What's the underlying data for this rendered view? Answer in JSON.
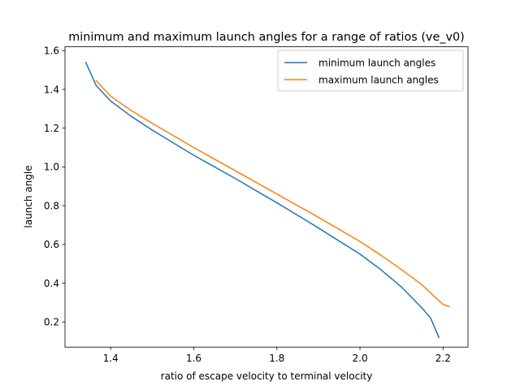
{
  "chart_data": {
    "type": "line",
    "title": "minimum and maximum launch angles for a range of ratios (ve_v0)",
    "xlabel": "ratio of escape velocity to terminal velocity",
    "ylabel": "launch angle",
    "xlim": [
      1.29,
      2.26
    ],
    "ylim": [
      0.07,
      1.62
    ],
    "xticks": [
      1.4,
      1.6,
      1.8,
      2.0,
      2.2
    ],
    "xtick_labels": [
      "1.4",
      "1.6",
      "1.8",
      "2.0",
      "2.2"
    ],
    "yticks": [
      0.2,
      0.4,
      0.6,
      0.8,
      1.0,
      1.2,
      1.4,
      1.6
    ],
    "ytick_labels": [
      "0.2",
      "0.4",
      "0.6",
      "0.8",
      "1.0",
      "1.2",
      "1.4",
      "1.6"
    ],
    "grid": false,
    "legend_position": "top-right",
    "series": [
      {
        "name": "minimum launch angles",
        "color": "#1f77b4",
        "x": [
          1.34,
          1.365,
          1.4,
          1.45,
          1.5,
          1.6,
          1.7,
          1.8,
          1.9,
          2.0,
          2.05,
          2.1,
          2.15,
          2.17,
          2.19
        ],
        "y": [
          1.54,
          1.42,
          1.34,
          1.26,
          1.19,
          1.06,
          0.94,
          0.815,
          0.685,
          0.55,
          0.47,
          0.38,
          0.27,
          0.22,
          0.12
        ]
      },
      {
        "name": "maximum launch angles",
        "color": "#ff7f0e",
        "x": [
          1.365,
          1.4,
          1.45,
          1.5,
          1.6,
          1.7,
          1.8,
          1.9,
          2.0,
          2.05,
          2.1,
          2.15,
          2.2,
          2.215
        ],
        "y": [
          1.445,
          1.365,
          1.29,
          1.225,
          1.1,
          0.98,
          0.86,
          0.74,
          0.615,
          0.545,
          0.47,
          0.39,
          0.29,
          0.28
        ]
      }
    ]
  }
}
